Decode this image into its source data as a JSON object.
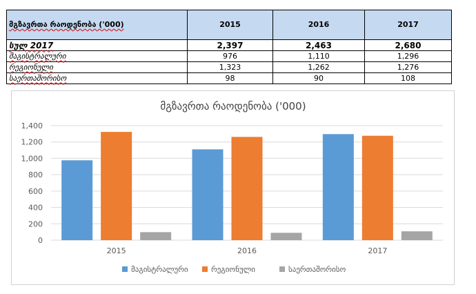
{
  "table": {
    "header_label": "მგზავრთა რაოდენობა ('000)",
    "years": [
      "2015",
      "2016",
      "2017"
    ],
    "rows": [
      {
        "label": "სულ 2017",
        "values": [
          "2,397",
          "2,463",
          "2,680"
        ],
        "total": true
      },
      {
        "label": "მაგისტრალური",
        "values": [
          "976",
          "1,110",
          "1,296"
        ],
        "total": false
      },
      {
        "label": "რეგიონული",
        "values": [
          "1,323",
          "1,262",
          "1,276"
        ],
        "total": false
      },
      {
        "label": "საერთაშორისო",
        "values": [
          "98",
          "90",
          "108"
        ],
        "total": false
      }
    ]
  },
  "chart_data": {
    "type": "bar",
    "title": "მგზავრთა რაოდენობა ('000)",
    "categories": [
      "2015",
      "2016",
      "2017"
    ],
    "series": [
      {
        "name": "მაგისტრალური",
        "values": [
          976,
          1110,
          1296
        ],
        "color": "#5b9bd5"
      },
      {
        "name": "რეგიონული",
        "values": [
          1323,
          1262,
          1276
        ],
        "color": "#ed7d31"
      },
      {
        "name": "საერთაშორისო",
        "values": [
          98,
          90,
          108
        ],
        "color": "#a5a5a5"
      }
    ],
    "ylim": [
      0,
      1400
    ],
    "yticks": [
      0,
      200,
      400,
      600,
      800,
      1000,
      1200,
      1400
    ],
    "ytick_labels": [
      "0",
      "200",
      "400",
      "600",
      "800",
      "1,000",
      "1,200",
      "1,400"
    ],
    "grid": true,
    "legend_position": "bottom"
  }
}
